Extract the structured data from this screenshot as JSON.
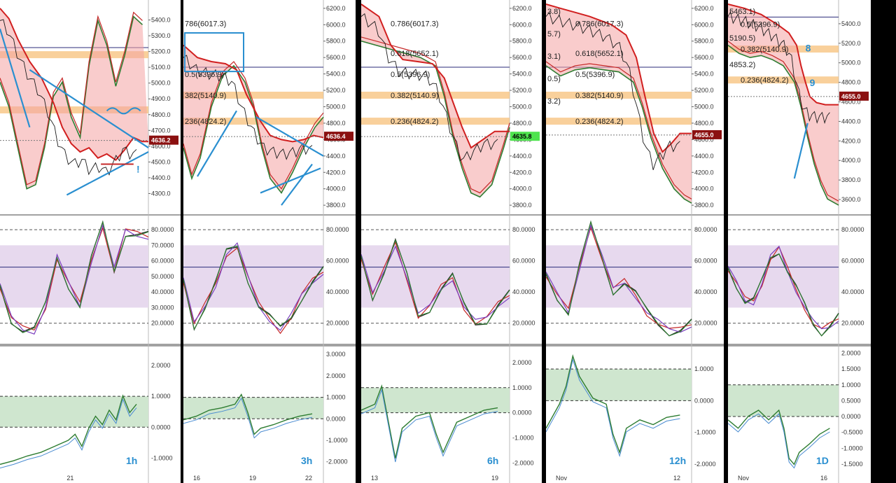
{
  "colors": {
    "price_line": "#d11f1f",
    "ribbon_red": "#f4a3a3",
    "ribbon_green": "#c9e6c4",
    "fib_band": "#f7c07a",
    "stoch_band": "#e7d9ee",
    "cci_band": "#cfe6cf",
    "annotation_blue": "#2a8fd0",
    "tag_red": "#8b1010",
    "tag_green": "#4ee44e"
  },
  "chart_data": [
    {
      "type": "line",
      "timeframe": "1h",
      "x_tick_labels": [
        "21"
      ],
      "price": {
        "ylim": [
          4200,
          5500
        ],
        "y_ticks": [
          "5400.0",
          "5300.0",
          "5200.0",
          "5100.0",
          "5000.0",
          "4900.0",
          "4800.0",
          "4700.0",
          "4600.0",
          "4500.0",
          "4400.0",
          "4300.0"
        ],
        "last_price_label": "4636.2",
        "fib_levels": [],
        "annotations": [
          "!"
        ]
      },
      "stoch": {
        "ylim": [
          10,
          85
        ],
        "y_ticks": [
          "80.0000",
          "70.0000",
          "60.0000",
          "50.0000",
          "40.0000",
          "30.0000",
          "20.0000"
        ]
      },
      "cci": {
        "ylim": [
          -1.4,
          2.5
        ],
        "y_ticks": [
          "2.0000",
          "1.0000",
          "0.0000",
          "-1.0000"
        ]
      }
    },
    {
      "type": "line",
      "timeframe": "3h",
      "x_tick_labels": [
        "16",
        "19",
        "22"
      ],
      "price": {
        "ylim": [
          3750,
          6250
        ],
        "y_ticks": [
          "6200.0",
          "6000.0",
          "5800.0",
          "5600.0",
          "5400.0",
          "5200.0",
          "5000.0",
          "4800.0",
          "4600.0",
          "4400.0",
          "4200.0",
          "4000.0",
          "3800.0"
        ],
        "last_price_label": "4636.4",
        "fib_levels": [
          "786(6017.3)",
          "0.5(5396.9)",
          "382(5140.9)",
          "236(4824.2)"
        ],
        "annotations": []
      },
      "stoch": {
        "ylim": [
          10,
          85
        ],
        "y_ticks": [
          "80.0000",
          "60.0000",
          "40.0000",
          "20.0000"
        ]
      },
      "cci": {
        "ylim": [
          -2.4,
          3.2
        ],
        "y_ticks": [
          "3.0000",
          "2.0000",
          "1.0000",
          "0.0000",
          "-1.0000",
          "-2.0000"
        ]
      }
    },
    {
      "type": "line",
      "timeframe": "6h",
      "x_tick_labels": [
        "13",
        "19"
      ],
      "price": {
        "ylim": [
          3750,
          6250
        ],
        "y_ticks": [
          "6200.0",
          "6000.0",
          "5800.0",
          "5600.0",
          "5400.0",
          "5200.0",
          "5000.0",
          "4800.0",
          "4600.0",
          "4400.0",
          "4200.0",
          "4000.0",
          "3800.0"
        ],
        "last_price_label": "4635.8",
        "fib_levels": [
          "0.786(6017.3)",
          "0.618(5652.1)",
          "0.5(5396.9)",
          "0.382(5140.9)",
          "0.236(4824.2)"
        ],
        "annotations": []
      },
      "stoch": {
        "ylim": [
          10,
          85
        ],
        "y_ticks": [
          "80.0000",
          "60.0000",
          "40.0000",
          "20.0000"
        ]
      },
      "cci": {
        "ylim": [
          -2.3,
          2.5
        ],
        "y_ticks": [
          "2.0000",
          "1.0000",
          "0.0000",
          "-1.0000",
          "-2.0000"
        ]
      }
    },
    {
      "type": "line",
      "timeframe": "12h",
      "x_tick_labels": [
        "Nov",
        "12"
      ],
      "price": {
        "ylim": [
          3750,
          6250
        ],
        "y_ticks": [
          "6200.0",
          "6000.0",
          "5800.0",
          "5600.0",
          "5400.0",
          "5200.0",
          "5000.0",
          "4800.0",
          "4600.0",
          "4400.0",
          "4200.0",
          "4000.0",
          "3800.0"
        ],
        "last_price_label": "4655.0",
        "fib_levels": [
          "0.786(6017.3)",
          "0.618(5652.1)",
          "0.5(5396.9)",
          "0.382(5140.9)",
          "0.236(4824.2)"
        ],
        "left_edge_labels": [
          "3.8)",
          "5.7)",
          "3.1)",
          "0.5)",
          "3.2)"
        ],
        "annotations": []
      },
      "stoch": {
        "ylim": [
          10,
          85
        ],
        "y_ticks": [
          "80.0000",
          "60.0000",
          "40.0000",
          "20.0000"
        ]
      },
      "cci": {
        "ylim": [
          -2.2,
          1.6
        ],
        "y_ticks": [
          "1.0000",
          "0.0000",
          "-1.0000",
          "-2.0000"
        ]
      }
    },
    {
      "type": "line",
      "timeframe": "1D",
      "x_tick_labels": [
        "Nov",
        "16"
      ],
      "price": {
        "ylim": [
          3500,
          5600
        ],
        "y_ticks": [
          "5400.0",
          "5200.0",
          "5000.0",
          "4800.0",
          "4600.0",
          "4400.0",
          "4200.0",
          "4000.0",
          "3800.0",
          "3600.0"
        ],
        "last_price_label": "4655.0",
        "fib_levels": [
          "0.5(5396.9)",
          "0.382(5140.9)",
          "0.236(4824.2)"
        ],
        "left_edge_labels": [
          "5463.1)",
          "5190.5)",
          "4853.2)"
        ],
        "annotations": [
          "8",
          "9"
        ]
      },
      "stoch": {
        "ylim": [
          10,
          85
        ],
        "y_ticks": [
          "80.0000",
          "60.0000",
          "40.0000",
          "20.0000"
        ]
      },
      "cci": {
        "ylim": [
          -1.7,
          2.1
        ],
        "y_ticks": [
          "2.0000",
          "1.5000",
          "1.0000",
          "0.5000",
          "0.0000",
          "-0.5000",
          "-1.0000",
          "-1.5000"
        ]
      }
    }
  ]
}
